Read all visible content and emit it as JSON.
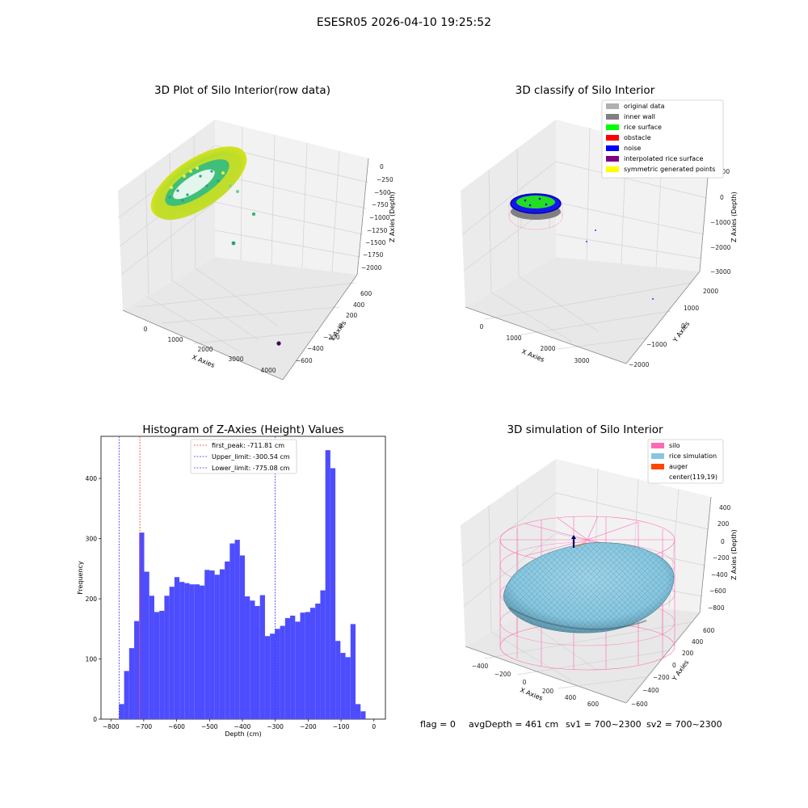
{
  "figure": {
    "suptitle": "ESESR05 2026-04-10 19:25:52",
    "footer": {
      "flag": "flag = 0",
      "avg_depth": "avgDepth = 461 cm",
      "sv1": "sv1 = 700~2300",
      "sv2": "sv2 = 700~2300"
    }
  },
  "colors": {
    "hist_bar": "#4d4dff",
    "first_peak": "#ff3333",
    "limits": "#3333ff",
    "pane": "#f2f2f2",
    "grid": "#d0d0d0",
    "silo": "#ff69b4",
    "rice_simulation": "#86c6e0",
    "auger": "#ff4500"
  },
  "chart_data": [
    {
      "type": "scatter3d",
      "title": "3D Plot of Silo Interior(row data)",
      "xlabel": "X Axies",
      "ylabel": "Y Axies",
      "zlabel": "Z Axies (Depth)",
      "x_ticks": [
        "0",
        "1000",
        "2000",
        "3000",
        "4000"
      ],
      "y_ticks": [
        "600",
        "400",
        "200",
        "0",
        "−200",
        "−400",
        "−600"
      ],
      "z_ticks": [
        "0",
        "−250",
        "−500",
        "−750",
        "−1000",
        "−1250",
        "−1500",
        "−1750",
        "−2000"
      ],
      "colormap": "viridis",
      "outliers": [
        {
          "x": 900,
          "y": -100,
          "z": -1000
        },
        {
          "x": 500,
          "y": -300,
          "z": -1700
        },
        {
          "x": 3900,
          "y": -500,
          "z": -2000
        }
      ]
    },
    {
      "type": "scatter3d",
      "title": "3D classify of Silo Interior",
      "xlabel": "X Axies",
      "ylabel": "Y Axies",
      "zlabel": "Z Axies (Depth)",
      "x_ticks": [
        "0",
        "1000",
        "2000",
        "3000"
      ],
      "y_ticks": [
        "2000",
        "1000",
        "0",
        "−1000",
        "−2000"
      ],
      "z_ticks": [
        "1000",
        "0",
        "−1000",
        "−2000",
        "−3000"
      ],
      "legend_location": "upper-right",
      "legend": [
        {
          "label": "original data",
          "color": "#b0b0b0"
        },
        {
          "label": "inner wall",
          "color": "#808080"
        },
        {
          "label": "rice surface",
          "color": "#00ff00"
        },
        {
          "label": "obstacle",
          "color": "#ff0000"
        },
        {
          "label": "noise",
          "color": "#0000ff"
        },
        {
          "label": "interpolated rice surface",
          "color": "#800080"
        },
        {
          "label": "symmetric generated points",
          "color": "#ffff00"
        }
      ]
    },
    {
      "type": "bar",
      "title": "Histogram of Z-Axies (Height) Values",
      "xlabel": "Depth (cm)",
      "ylabel": "Frequency",
      "xlim": [
        -830,
        35
      ],
      "ylim": [
        0,
        470
      ],
      "x_ticks": [
        -800,
        -700,
        -600,
        -500,
        -400,
        -300,
        -200,
        -100,
        0
      ],
      "y_ticks": [
        0,
        100,
        200,
        300,
        400
      ],
      "bin_start": -775,
      "bin_width": 15.3,
      "values": [
        25,
        80,
        118,
        163,
        310,
        245,
        205,
        178,
        180,
        205,
        220,
        236,
        228,
        226,
        224,
        224,
        222,
        248,
        247,
        240,
        249,
        262,
        292,
        298,
        272,
        204,
        197,
        188,
        206,
        138,
        142,
        150,
        155,
        168,
        172,
        162,
        177,
        178,
        185,
        192,
        214,
        447,
        417,
        130,
        110,
        103,
        158,
        25,
        13
      ],
      "vlines": [
        {
          "label": "first_peak: -711.81 cm",
          "x": -711.81,
          "color": "#ff3333"
        },
        {
          "label": "Upper_limit: -300.54 cm",
          "x": -300.54,
          "color": "#3333ff"
        },
        {
          "label": "Lower_limit: -775.08 cm",
          "x": -775.08,
          "color": "#3333ff"
        }
      ],
      "legend_location": "upper-center"
    },
    {
      "type": "surface3d",
      "title": "3D simulation of Silo Interior",
      "xlabel": "X Axies",
      "ylabel": "Y Axies",
      "zlabel": "Z Axies (Depth)",
      "x_ticks": [
        "−400",
        "−200",
        "0",
        "200",
        "400",
        "600"
      ],
      "y_ticks": [
        "600",
        "400",
        "200",
        "0",
        "−200",
        "−400",
        "−600"
      ],
      "z_ticks": [
        "400",
        "200",
        "0",
        "−200",
        "−400",
        "−600",
        "−800"
      ],
      "legend_location": "upper-right",
      "legend": [
        {
          "label": "silo",
          "color": "#ff69b4"
        },
        {
          "label": "rice simulation",
          "color": "#86c6e0"
        },
        {
          "label": "auger",
          "color": "#ff4500"
        },
        {
          "label": "center(119,19)",
          "color": "#ffffff"
        }
      ]
    }
  ]
}
